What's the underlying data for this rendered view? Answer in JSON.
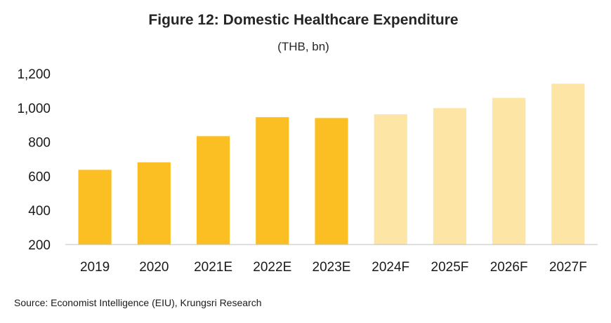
{
  "chart_data": {
    "type": "bar",
    "title": "Figure 12: Domestic Healthcare Expenditure",
    "subtitle": "(THB, bn)",
    "categories": [
      "2019",
      "2020",
      "2021E",
      "2022E",
      "2023E",
      "2024F",
      "2025F",
      "2026F",
      "2027F"
    ],
    "values": [
      637,
      681,
      834,
      945,
      940,
      962,
      998,
      1058,
      1141
    ],
    "ylim": [
      200,
      1200
    ],
    "yticks": [
      200,
      400,
      600,
      800,
      1000,
      1200
    ],
    "ytick_labels": [
      "200",
      "400",
      "600",
      "800",
      "1,000",
      "1,200"
    ],
    "bar_colors": [
      "#FBBF24",
      "#FBBF24",
      "#FBBF24",
      "#FBBF24",
      "#FBBF24",
      "#FDE5A6",
      "#FDE5A6",
      "#FDE5A6",
      "#FDE5A6"
    ],
    "grid": false,
    "source": "Source: Economist Intelligence (EIU), Krungsri Research"
  }
}
